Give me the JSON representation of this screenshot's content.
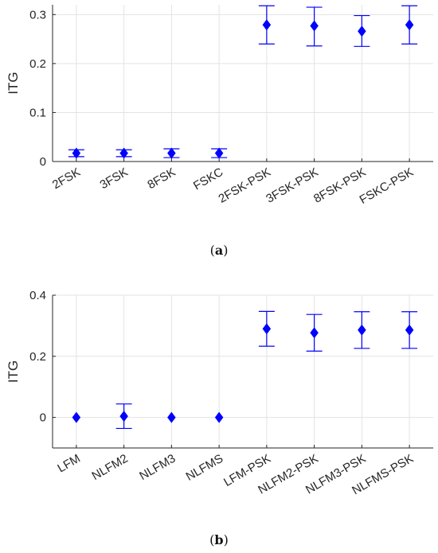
{
  "chart_data": [
    {
      "type": "errorbar",
      "caption": {
        "open": "(",
        "letter": "a",
        "close": ")"
      },
      "ylabel": "ITG",
      "ylim": [
        0,
        0.32
      ],
      "yticks": [
        0,
        0.1,
        0.2,
        0.3
      ],
      "ytick_labels": [
        "0",
        "0.1",
        "0.2",
        "0.3"
      ],
      "grid": true,
      "categories": [
        "2FSK",
        "3FSK",
        "8FSK",
        "FSKC",
        "2FSK-PSK",
        "3FSK-PSK",
        "8FSK-PSK",
        "FSKC-PSK"
      ],
      "values": [
        0.017,
        0.017,
        0.017,
        0.017,
        0.279,
        0.277,
        0.266,
        0.279
      ],
      "lower": [
        0.01,
        0.01,
        0.008,
        0.008,
        0.24,
        0.236,
        0.235,
        0.24
      ],
      "upper": [
        0.024,
        0.024,
        0.026,
        0.026,
        0.318,
        0.315,
        0.298,
        0.318
      ],
      "color": "#0000ff"
    },
    {
      "type": "errorbar",
      "caption": {
        "open": "(",
        "letter": "b",
        "close": ")"
      },
      "ylabel": "ITG",
      "ylim": [
        -0.1,
        0.4
      ],
      "yticks": [
        0,
        0.2,
        0.4
      ],
      "ytick_labels": [
        "0",
        "0.2",
        "0.4"
      ],
      "grid": true,
      "categories": [
        "LFM",
        "NLFM2",
        "NLFM3",
        "NLFMS",
        "LFM-PSK",
        "NLFM2-PSK",
        "NLFM3-PSK",
        "NLFMS-PSK"
      ],
      "values": [
        0.0,
        0.004,
        0.0,
        0.0,
        0.29,
        0.277,
        0.286,
        0.286
      ],
      "lower": [
        0.0,
        -0.036,
        0.0,
        0.0,
        0.233,
        0.217,
        0.226,
        0.226
      ],
      "upper": [
        0.0,
        0.044,
        0.0,
        0.0,
        0.347,
        0.337,
        0.346,
        0.346
      ],
      "color": "#0000ff"
    }
  ]
}
